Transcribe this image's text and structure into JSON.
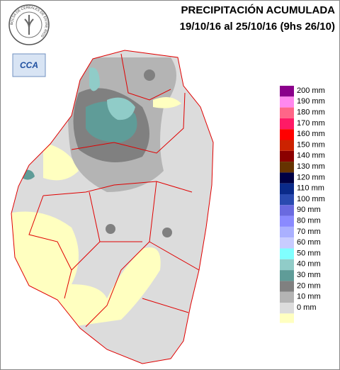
{
  "header": {
    "title_line1": "PRECIPITACIÓN ACUMULADA",
    "title_line2": "19/10/16 al 25/10/16 (9hs 26/10)"
  },
  "logo": {
    "ring_text": "BOLSA DE CEREALES DE ENTRE RIOS",
    "badge": "CCA"
  },
  "legend": {
    "items": [
      {
        "label": "200 mm",
        "color": "#8b008b"
      },
      {
        "label": "190 mm",
        "color": "#ff88ee"
      },
      {
        "label": "180 mm",
        "color": "#ff6688"
      },
      {
        "label": "170 mm",
        "color": "#ff1a66"
      },
      {
        "label": "160 mm",
        "color": "#ff0000"
      },
      {
        "label": "150 mm",
        "color": "#cc2200"
      },
      {
        "label": "140 mm",
        "color": "#8b0000"
      },
      {
        "label": "130 mm",
        "color": "#663300"
      },
      {
        "label": "120 mm",
        "color": "#000044"
      },
      {
        "label": "110 mm",
        "color": "#0a2a8a"
      },
      {
        "label": "100 mm",
        "color": "#2a4ab0"
      },
      {
        "label": "90 mm",
        "color": "#6a6ae0"
      },
      {
        "label": "80 mm",
        "color": "#8a8aff"
      },
      {
        "label": "70 mm",
        "color": "#aab0ff"
      },
      {
        "label": "60 mm",
        "color": "#c8ccff"
      },
      {
        "label": "50 mm",
        "color": "#80ffff"
      },
      {
        "label": "40 mm",
        "color": "#90ccc8"
      },
      {
        "label": "30 mm",
        "color": "#5f9c98"
      },
      {
        "label": "20 mm",
        "color": "#808080"
      },
      {
        "label": "10 mm",
        "color": "#b4b4b4"
      },
      {
        "label": "0 mm",
        "color": "#dcdcdc"
      }
    ],
    "base_color": "#ffffc0"
  }
}
